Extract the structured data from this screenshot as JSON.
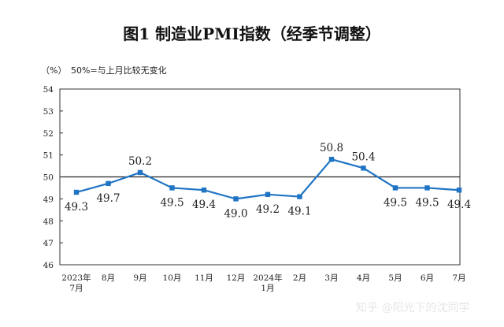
{
  "chart_data": {
    "type": "line",
    "title": "图1  制造业PMI指数（经季节调整）",
    "unit_label": "（%）",
    "note": "50%=与上月比较无变化",
    "categories": [
      [
        "2023年",
        "7月"
      ],
      [
        "8月"
      ],
      [
        "9月"
      ],
      [
        "10月"
      ],
      [
        "11月"
      ],
      [
        "12月"
      ],
      [
        "2024年",
        "1月"
      ],
      [
        "2月"
      ],
      [
        "3月"
      ],
      [
        "4月"
      ],
      [
        "5月"
      ],
      [
        "6月"
      ],
      [
        "7月"
      ]
    ],
    "values": [
      49.3,
      49.7,
      50.2,
      49.5,
      49.4,
      49.0,
      49.2,
      49.1,
      50.8,
      50.4,
      49.5,
      49.5,
      49.4
    ],
    "value_labels": [
      "49.3",
      "49.7",
      "50.2",
      "49.5",
      "49.4",
      "49.0",
      "49.2",
      "49.1",
      "50.8",
      "50.4",
      "49.5",
      "49.5",
      "49.4"
    ],
    "label_positions": [
      "below",
      "below",
      "above",
      "below",
      "below",
      "below",
      "below",
      "below",
      "above",
      "above",
      "below",
      "below",
      "below"
    ],
    "ylim": [
      46,
      54
    ],
    "yticks": [
      46,
      47,
      48,
      49,
      50,
      51,
      52,
      53,
      54
    ],
    "reference_line": 50,
    "grid": false,
    "line_color": "#1f74c4",
    "reference_color": "#222222"
  },
  "watermark": "知乎 @阳光下的沈同学"
}
